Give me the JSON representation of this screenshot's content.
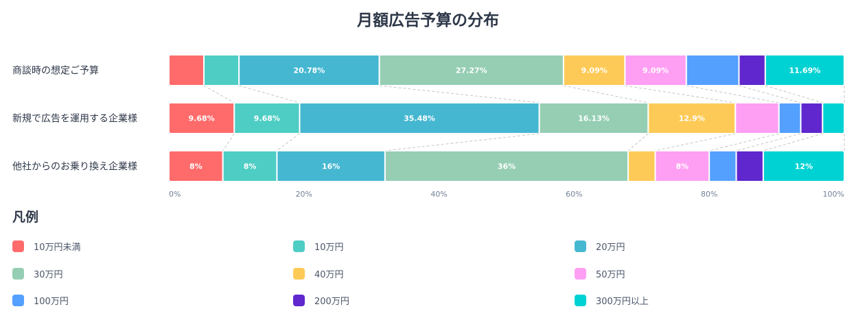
{
  "title": "月額広告予算の分布",
  "legend_title": "凡例",
  "colors": [
    "#FF6B6B",
    "#4ECDC4",
    "#45B7D1",
    "#96CEB4",
    "#FECA57",
    "#FF9FF3",
    "#54A0FF",
    "#5F27CD",
    "#00D2D3"
  ],
  "chart_data": {
    "type": "bar",
    "orientation": "horizontal",
    "stacked": "percent",
    "categories": [
      "商談時の想定ご予算",
      "新規で広告を運用する企業様",
      "他社からのお乗り換え企業様"
    ],
    "series": [
      {
        "name": "10万円未満",
        "values": [
          5.19,
          9.68,
          8
        ]
      },
      {
        "name": "10万円",
        "values": [
          5.19,
          9.68,
          8
        ]
      },
      {
        "name": "20万円",
        "values": [
          20.78,
          35.48,
          16
        ]
      },
      {
        "name": "30万円",
        "values": [
          27.27,
          16.13,
          36
        ]
      },
      {
        "name": "40万円",
        "values": [
          9.09,
          12.9,
          4
        ]
      },
      {
        "name": "50万円",
        "values": [
          9.09,
          6.45,
          8
        ]
      },
      {
        "name": "100万円",
        "values": [
          7.79,
          3.23,
          4
        ]
      },
      {
        "name": "200万円",
        "values": [
          3.9,
          3.23,
          4
        ]
      },
      {
        "name": "300万円以上",
        "values": [
          11.69,
          3.23,
          12
        ]
      }
    ],
    "data_labels": [
      [
        "",
        "",
        "20.78%",
        "27.27%",
        "9.09%",
        "9.09%",
        "",
        "",
        "11.69%"
      ],
      [
        "9.68%",
        "9.68%",
        "35.48%",
        "16.13%",
        "12.9%",
        "",
        "",
        "",
        ""
      ],
      [
        "8%",
        "8%",
        "16%",
        "36%",
        "",
        "8%",
        "",
        "",
        "12%"
      ]
    ],
    "x_ticks": [
      "0%",
      "20%",
      "40%",
      "60%",
      "80%",
      "100%"
    ],
    "xlim": [
      0,
      100
    ],
    "connector_lines": true,
    "legend_position": "bottom"
  }
}
